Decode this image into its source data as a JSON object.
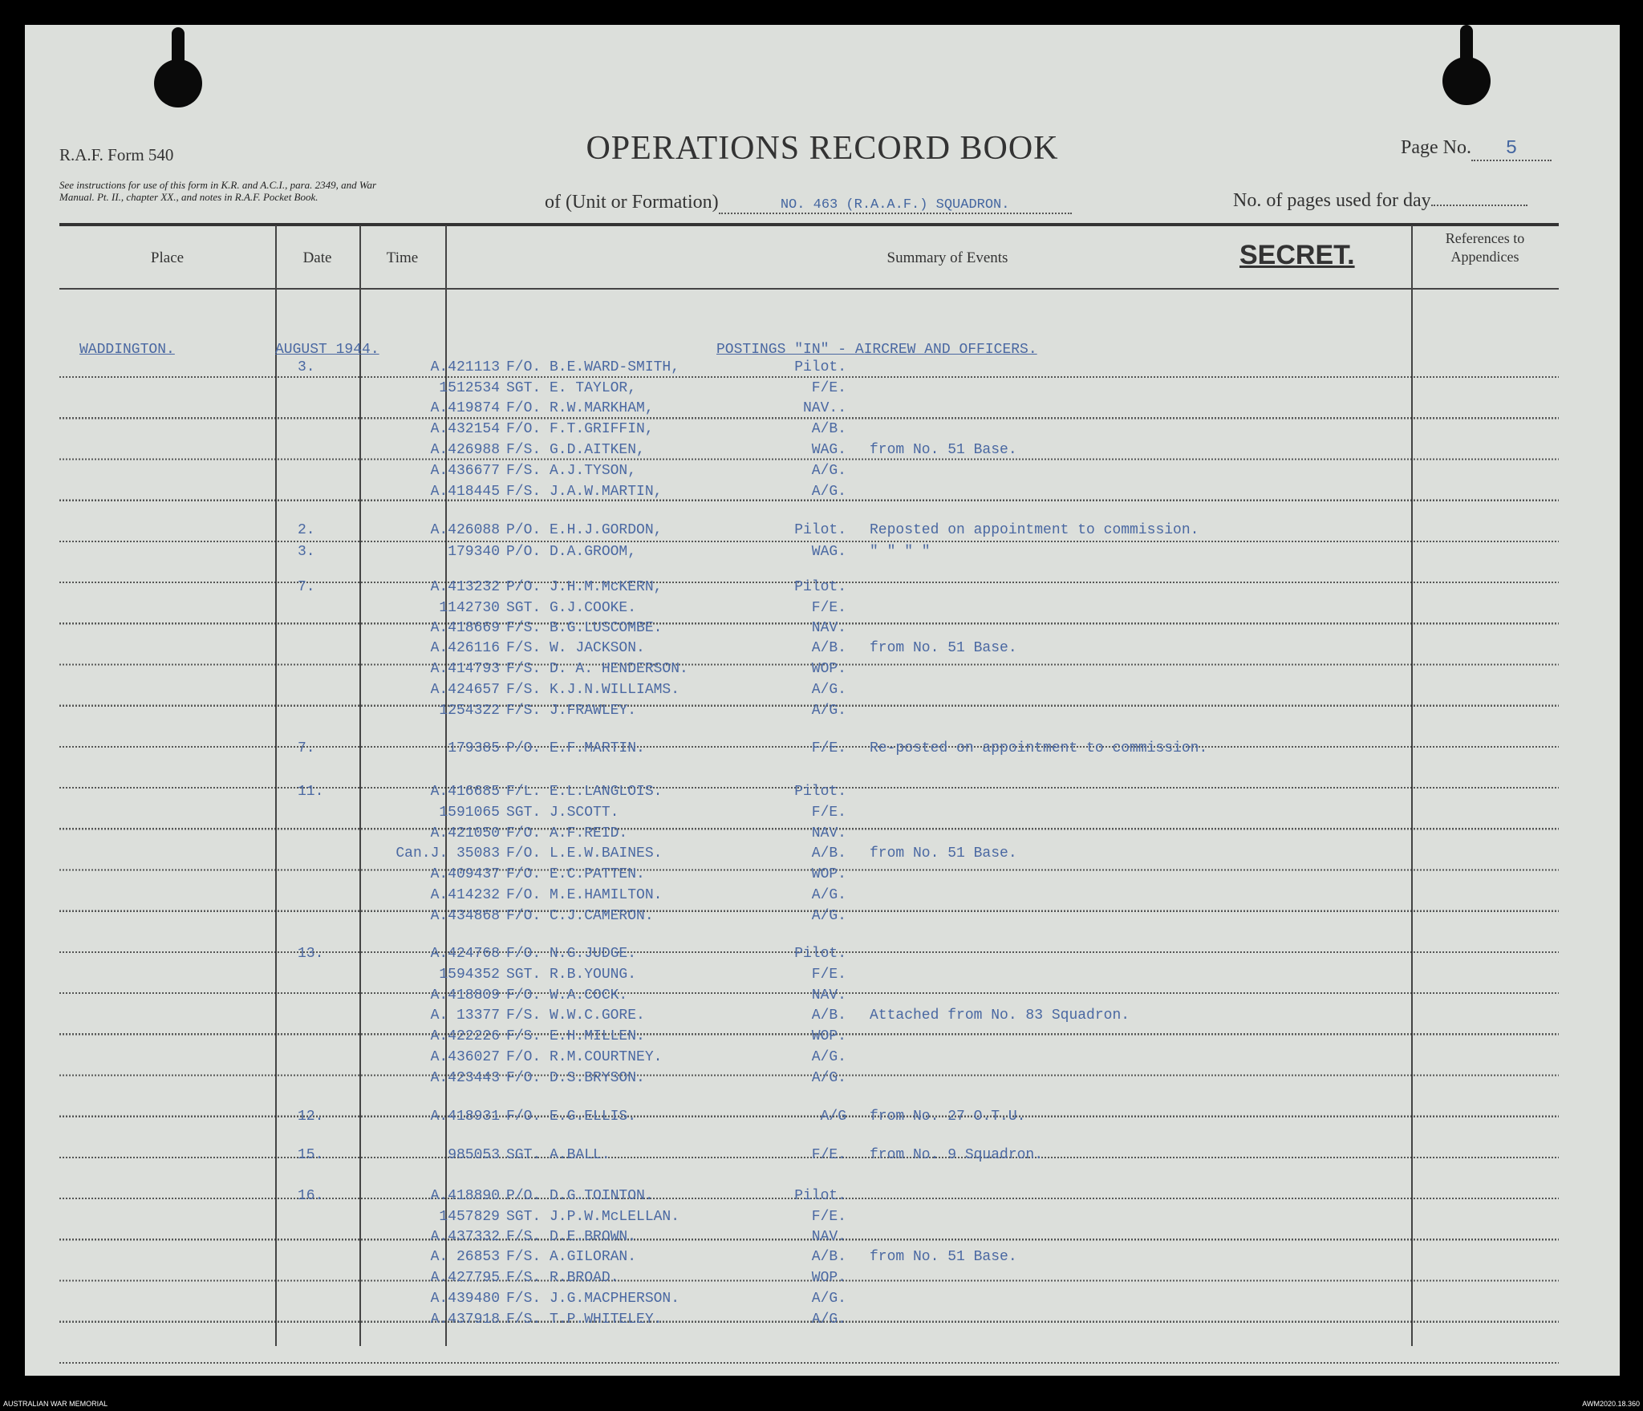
{
  "form": {
    "form_number": "R.A.F. Form 540",
    "instructions": "See instructions for use of this form in K.R. and A.C.I., para. 2349, and War Manual. Pt. II., chapter XX., and notes in R.A.F. Pocket Book.",
    "title": "OPERATIONS RECORD BOOK",
    "page_no_label": "Page No.",
    "page_no": "5",
    "unit_label": "of (Unit or Formation)",
    "unit": "NO. 463 (R.A.A.F.) SQUADRON.",
    "pages_used_label": "No. of pages used for day",
    "classification": "SECRET."
  },
  "columns": {
    "place": "Place",
    "date": "Date",
    "time": "Time",
    "summary": "Summary of Events",
    "references": "References to Appendices"
  },
  "heading": {
    "place": "WADDINGTON.",
    "date": "AUGUST 1944.",
    "summary": "POSTINGS \"IN\" - AIRCREW AND OFFICERS."
  },
  "entries": [
    {
      "date": "3.",
      "number": "A.421113",
      "name": "F/O. B.E.WARD-SMITH,",
      "role": "Pilot.",
      "remark": ""
    },
    {
      "date": "",
      "number": "1512534",
      "name": "SGT. E. TAYLOR,",
      "role": "F/E.",
      "remark": ""
    },
    {
      "date": "",
      "number": "A.419874",
      "name": "F/O. R.W.MARKHAM,",
      "role": "NAV..",
      "remark": ""
    },
    {
      "date": "",
      "number": "A.432154",
      "name": "F/O. F.T.GRIFFIN,",
      "role": "A/B.",
      "remark": ""
    },
    {
      "date": "",
      "number": "A.426988",
      "name": "F/S. G.D.AITKEN,",
      "role": "WAG.",
      "remark": "from No. 51 Base."
    },
    {
      "date": "",
      "number": "A.436677",
      "name": "F/S. A.J.TYSON,",
      "role": "A/G.",
      "remark": ""
    },
    {
      "date": "",
      "number": "A.418445",
      "name": "F/S. J.A.W.MARTIN,",
      "role": "A/G.",
      "remark": ""
    },
    {
      "date": "2.",
      "number": "A.426088",
      "name": "P/O. E.H.J.GORDON,",
      "role": "Pilot.",
      "remark": "Reposted on appointment to commission."
    },
    {
      "date": "3.",
      "number": "179340",
      "name": "P/O. D.A.GROOM,",
      "role": "WAG.",
      "remark": "\"      \"      \"      \""
    },
    {
      "date": "7.",
      "number": "A.413232",
      "name": "P/O. J.H.M.McKERN,",
      "role": "Pilot.",
      "remark": ""
    },
    {
      "date": "",
      "number": "1142730",
      "name": "SGT. G.J.COOKE.",
      "role": "F/E.",
      "remark": ""
    },
    {
      "date": "",
      "number": "A.418669",
      "name": "F/S. B.G.LUSCOMBE.",
      "role": "NAV.",
      "remark": ""
    },
    {
      "date": "",
      "number": "A.426116",
      "name": "F/S. W. JACKSON.",
      "role": "A/B.",
      "remark": "from No. 51 Base."
    },
    {
      "date": "",
      "number": "A.414793",
      "name": "F/S. D. A. HENDERSON.",
      "role": "WOP.",
      "remark": ""
    },
    {
      "date": "",
      "number": "A.424657",
      "name": "F/S. K.J.N.WILLIAMS.",
      "role": "A/G.",
      "remark": ""
    },
    {
      "date": "",
      "number": "1254322",
      "name": "F/S. J.FRAWLEY.",
      "role": "A/G.",
      "remark": ""
    },
    {
      "date": "7.",
      "number": "179385",
      "name": "P/O. E.F.MARTIN.",
      "role": "F/E.",
      "remark": "Re-posted on appointment to commission."
    },
    {
      "date": "11.",
      "number": "A.416685",
      "name": "F/L. E.L.LANGLOIS.",
      "role": "Pilot.",
      "remark": ""
    },
    {
      "date": "",
      "number": "1591065",
      "name": "SGT. J.SCOTT.",
      "role": "F/E.",
      "remark": ""
    },
    {
      "date": "",
      "number": "A.421050",
      "name": "F/O. A.F.REID.",
      "role": "NAV.",
      "remark": ""
    },
    {
      "date": "",
      "number": "Can.J. 35083",
      "name": "F/O. L.E.W.BAINES.",
      "role": "A/B.",
      "remark": "from No. 51 Base."
    },
    {
      "date": "",
      "number": "A.409437",
      "name": "F/O. E.C.PATTEN.",
      "role": "WOP.",
      "remark": ""
    },
    {
      "date": "",
      "number": "A.414232",
      "name": "F/O. M.E.HAMILTON.",
      "role": "A/G.",
      "remark": ""
    },
    {
      "date": "",
      "number": "A.434868",
      "name": "F/O. C.J.CAMERON.",
      "role": "A/G.",
      "remark": ""
    },
    {
      "date": "13.",
      "number": "A.424768",
      "name": "F/O. N.G.JUDGE.",
      "role": "Pilot.",
      "remark": ""
    },
    {
      "date": "",
      "number": "1594352",
      "name": "SGT. R.B.YOUNG.",
      "role": "F/E.",
      "remark": ""
    },
    {
      "date": "",
      "number": "A.418809",
      "name": "F/O. W.A.COCK.",
      "role": "NAV.",
      "remark": ""
    },
    {
      "date": "",
      "number": "A. 13377",
      "name": "F/S. W.W.C.GORE.",
      "role": "A/B.",
      "remark": "Attached from No. 83 Squadron."
    },
    {
      "date": "",
      "number": "A.422226",
      "name": "F/S. E.H.MILLEN.",
      "role": "WOP.",
      "remark": ""
    },
    {
      "date": "",
      "number": "A.436027",
      "name": "F/O. R.M.COURTNEY.",
      "role": "A/G.",
      "remark": ""
    },
    {
      "date": "",
      "number": "A.423443",
      "name": "F/O. D.S.BRYSON.",
      "role": "A/G.",
      "remark": ""
    },
    {
      "date": "12.",
      "number": "A.418931",
      "name": "F/O. E.G.ELLIS.",
      "role": "A/G",
      "remark": "from No. 27 O.T.U."
    },
    {
      "date": "15.",
      "number": "985053",
      "name": "SGT. A.BALL.",
      "role": "F/E.",
      "remark": "from No. 9 Squadron."
    },
    {
      "date": "16.",
      "number": "A.418890",
      "name": "P/O. D.G.TOINTON.",
      "role": "Pilot.",
      "remark": ""
    },
    {
      "date": "",
      "number": "1457829",
      "name": "SGT. J.P.W.McLELLAN.",
      "role": "F/E.",
      "remark": ""
    },
    {
      "date": "",
      "number": "A.437332",
      "name": "F/S. D.E.BROWN.",
      "role": "NAV.",
      "remark": ""
    },
    {
      "date": "",
      "number": "A. 26853",
      "name": "F/S. A.GILORAN.",
      "role": "A/B.",
      "remark": "from No. 51 Base."
    },
    {
      "date": "",
      "number": "A.427795",
      "name": "F/S. R.BROAD.",
      "role": "WOP.",
      "remark": ""
    },
    {
      "date": "",
      "number": "A.439480",
      "name": "F/S. J.G.MACPHERSON.",
      "role": "A/G.",
      "remark": ""
    },
    {
      "date": "",
      "number": "A.437918",
      "name": "F/S. T.P.WHITELEY.",
      "role": "A/G.",
      "remark": ""
    }
  ],
  "footer": {
    "left": "AUSTRALIAN WAR MEMORIAL",
    "right": "AWM2020.18.360"
  },
  "colors": {
    "paper": "#dcdfdb",
    "typewriter_ink": "#4a68a2",
    "print": "#333333"
  }
}
